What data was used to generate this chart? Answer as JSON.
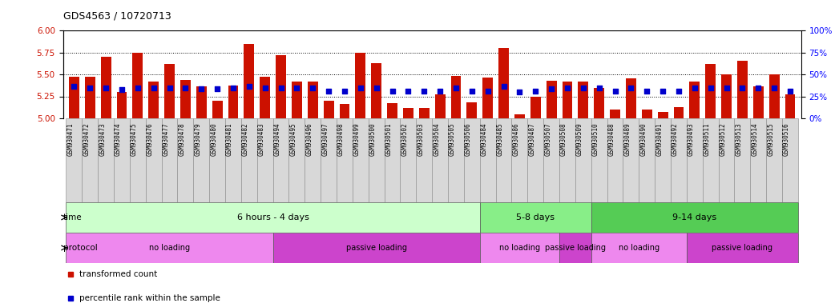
{
  "title": "GDS4563 / 10720713",
  "samples": [
    "GSM930471",
    "GSM930472",
    "GSM930473",
    "GSM930474",
    "GSM930475",
    "GSM930476",
    "GSM930477",
    "GSM930478",
    "GSM930479",
    "GSM930480",
    "GSM930481",
    "GSM930482",
    "GSM930483",
    "GSM930494",
    "GSM930495",
    "GSM930496",
    "GSM930497",
    "GSM930498",
    "GSM930499",
    "GSM930500",
    "GSM930501",
    "GSM930502",
    "GSM930503",
    "GSM930504",
    "GSM930505",
    "GSM930506",
    "GSM930484",
    "GSM930485",
    "GSM930486",
    "GSM930487",
    "GSM930507",
    "GSM930508",
    "GSM930509",
    "GSM930510",
    "GSM930488",
    "GSM930489",
    "GSM930490",
    "GSM930491",
    "GSM930492",
    "GSM930493",
    "GSM930511",
    "GSM930512",
    "GSM930513",
    "GSM930514",
    "GSM930515",
    "GSM930516"
  ],
  "bar_values": [
    5.47,
    5.47,
    5.7,
    5.3,
    5.75,
    5.42,
    5.62,
    5.44,
    5.36,
    5.2,
    5.37,
    5.85,
    5.47,
    5.72,
    5.42,
    5.42,
    5.2,
    5.16,
    5.75,
    5.63,
    5.17,
    5.12,
    5.12,
    5.27,
    5.48,
    5.18,
    5.46,
    5.8,
    5.05,
    5.25,
    5.43,
    5.42,
    5.42,
    5.35,
    5.1,
    5.45,
    5.1,
    5.07,
    5.13,
    5.42,
    5.62,
    5.5,
    5.65,
    5.36,
    5.5,
    5.27
  ],
  "percentile_values": [
    36,
    35,
    35,
    33,
    35,
    35,
    35,
    35,
    34,
    34,
    35,
    36,
    35,
    35,
    35,
    35,
    31,
    31,
    35,
    35,
    31,
    31,
    31,
    31,
    35,
    31,
    31,
    36,
    30,
    31,
    34,
    35,
    35,
    35,
    31,
    35,
    31,
    31,
    31,
    35,
    35,
    35,
    35,
    35,
    35,
    31
  ],
  "ylim_left": [
    5.0,
    6.0
  ],
  "ylim_right": [
    0,
    100
  ],
  "yticks_left": [
    5.0,
    5.25,
    5.5,
    5.75,
    6.0
  ],
  "yticks_right": [
    0,
    25,
    50,
    75,
    100
  ],
  "bar_color": "#cc1100",
  "dot_color": "#0000cc",
  "background_color": "#ffffff",
  "time_groups": [
    {
      "label": "6 hours - 4 days",
      "start": 0,
      "end": 26,
      "color": "#ccffcc"
    },
    {
      "label": "5-8 days",
      "start": 26,
      "end": 33,
      "color": "#88ee88"
    },
    {
      "label": "9-14 days",
      "start": 33,
      "end": 46,
      "color": "#55cc55"
    }
  ],
  "protocol_groups": [
    {
      "label": "no loading",
      "start": 0,
      "end": 13,
      "color": "#ee88ee"
    },
    {
      "label": "passive loading",
      "start": 13,
      "end": 26,
      "color": "#cc44cc"
    },
    {
      "label": "no loading",
      "start": 26,
      "end": 31,
      "color": "#ee88ee"
    },
    {
      "label": "passive loading",
      "start": 31,
      "end": 33,
      "color": "#cc44cc"
    },
    {
      "label": "no loading",
      "start": 33,
      "end": 39,
      "color": "#ee88ee"
    },
    {
      "label": "passive loading",
      "start": 39,
      "end": 46,
      "color": "#cc44cc"
    }
  ],
  "legend_items": [
    {
      "label": "transformed count",
      "color": "#cc1100"
    },
    {
      "label": "percentile rank within the sample",
      "color": "#0000cc"
    }
  ],
  "xtick_bg_color": "#cccccc",
  "xtick_border_color": "#999999"
}
